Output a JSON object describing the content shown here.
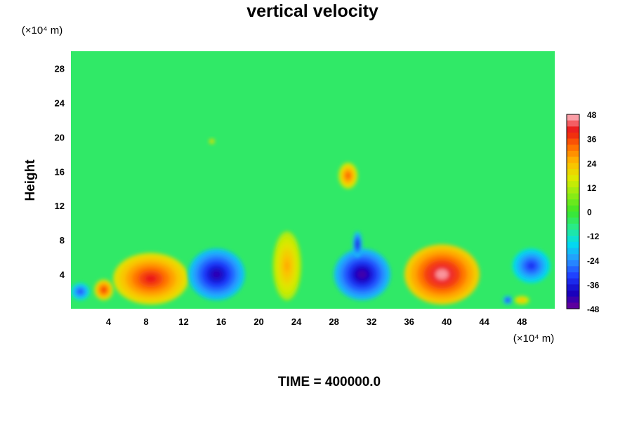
{
  "chart_data": {
    "type": "heatmap",
    "title": "vertical velocity",
    "ylabel": "Height",
    "xlabel": "",
    "x_unit": "(×10⁴ m)",
    "y_unit": "(×10⁴ m)",
    "xlim": [
      0,
      51.5
    ],
    "ylim": [
      0,
      30
    ],
    "x_ticks": [
      4,
      8,
      12,
      16,
      20,
      24,
      28,
      32,
      36,
      40,
      44,
      48
    ],
    "y_ticks": [
      4,
      8,
      12,
      16,
      20,
      24,
      28
    ],
    "colorbar": {
      "range": [
        -48,
        48
      ],
      "ticks": [
        48,
        36,
        24,
        12,
        0,
        -12,
        -24,
        -36,
        -48
      ]
    },
    "background_value": -5,
    "features": [
      {
        "x": 8.5,
        "y": 3.5,
        "rx": 4.0,
        "ry": 3.0,
        "value": 40
      },
      {
        "x": 3.5,
        "y": 2.2,
        "rx": 1.0,
        "ry": 1.2,
        "value": 38
      },
      {
        "x": 15.5,
        "y": 4.0,
        "rx": 3.0,
        "ry": 3.0,
        "value": -42
      },
      {
        "x": 23.0,
        "y": 5.0,
        "rx": 1.5,
        "ry": 4.0,
        "value": 26
      },
      {
        "x": 31.0,
        "y": 4.0,
        "rx": 3.0,
        "ry": 3.0,
        "value": -44
      },
      {
        "x": 30.5,
        "y": 7.5,
        "rx": 0.5,
        "ry": 1.5,
        "value": -40
      },
      {
        "x": 29.5,
        "y": 15.5,
        "rx": 1.0,
        "ry": 1.5,
        "value": 34
      },
      {
        "x": 39.5,
        "y": 4.0,
        "rx": 4.0,
        "ry": 3.5,
        "value": 46
      },
      {
        "x": 49.0,
        "y": 5.0,
        "rx": 2.0,
        "ry": 2.0,
        "value": -34
      },
      {
        "x": 1.0,
        "y": 2.0,
        "rx": 1.0,
        "ry": 1.0,
        "value": -32
      },
      {
        "x": 46.5,
        "y": 1.0,
        "rx": 0.5,
        "ry": 0.5,
        "value": -38
      },
      {
        "x": 48.0,
        "y": 1.0,
        "rx": 0.8,
        "ry": 0.5,
        "value": 26
      },
      {
        "x": 15.0,
        "y": 19.5,
        "rx": 0.3,
        "ry": 0.3,
        "value": 26
      }
    ]
  },
  "footer": {
    "time_label": "TIME = 400000.0"
  }
}
